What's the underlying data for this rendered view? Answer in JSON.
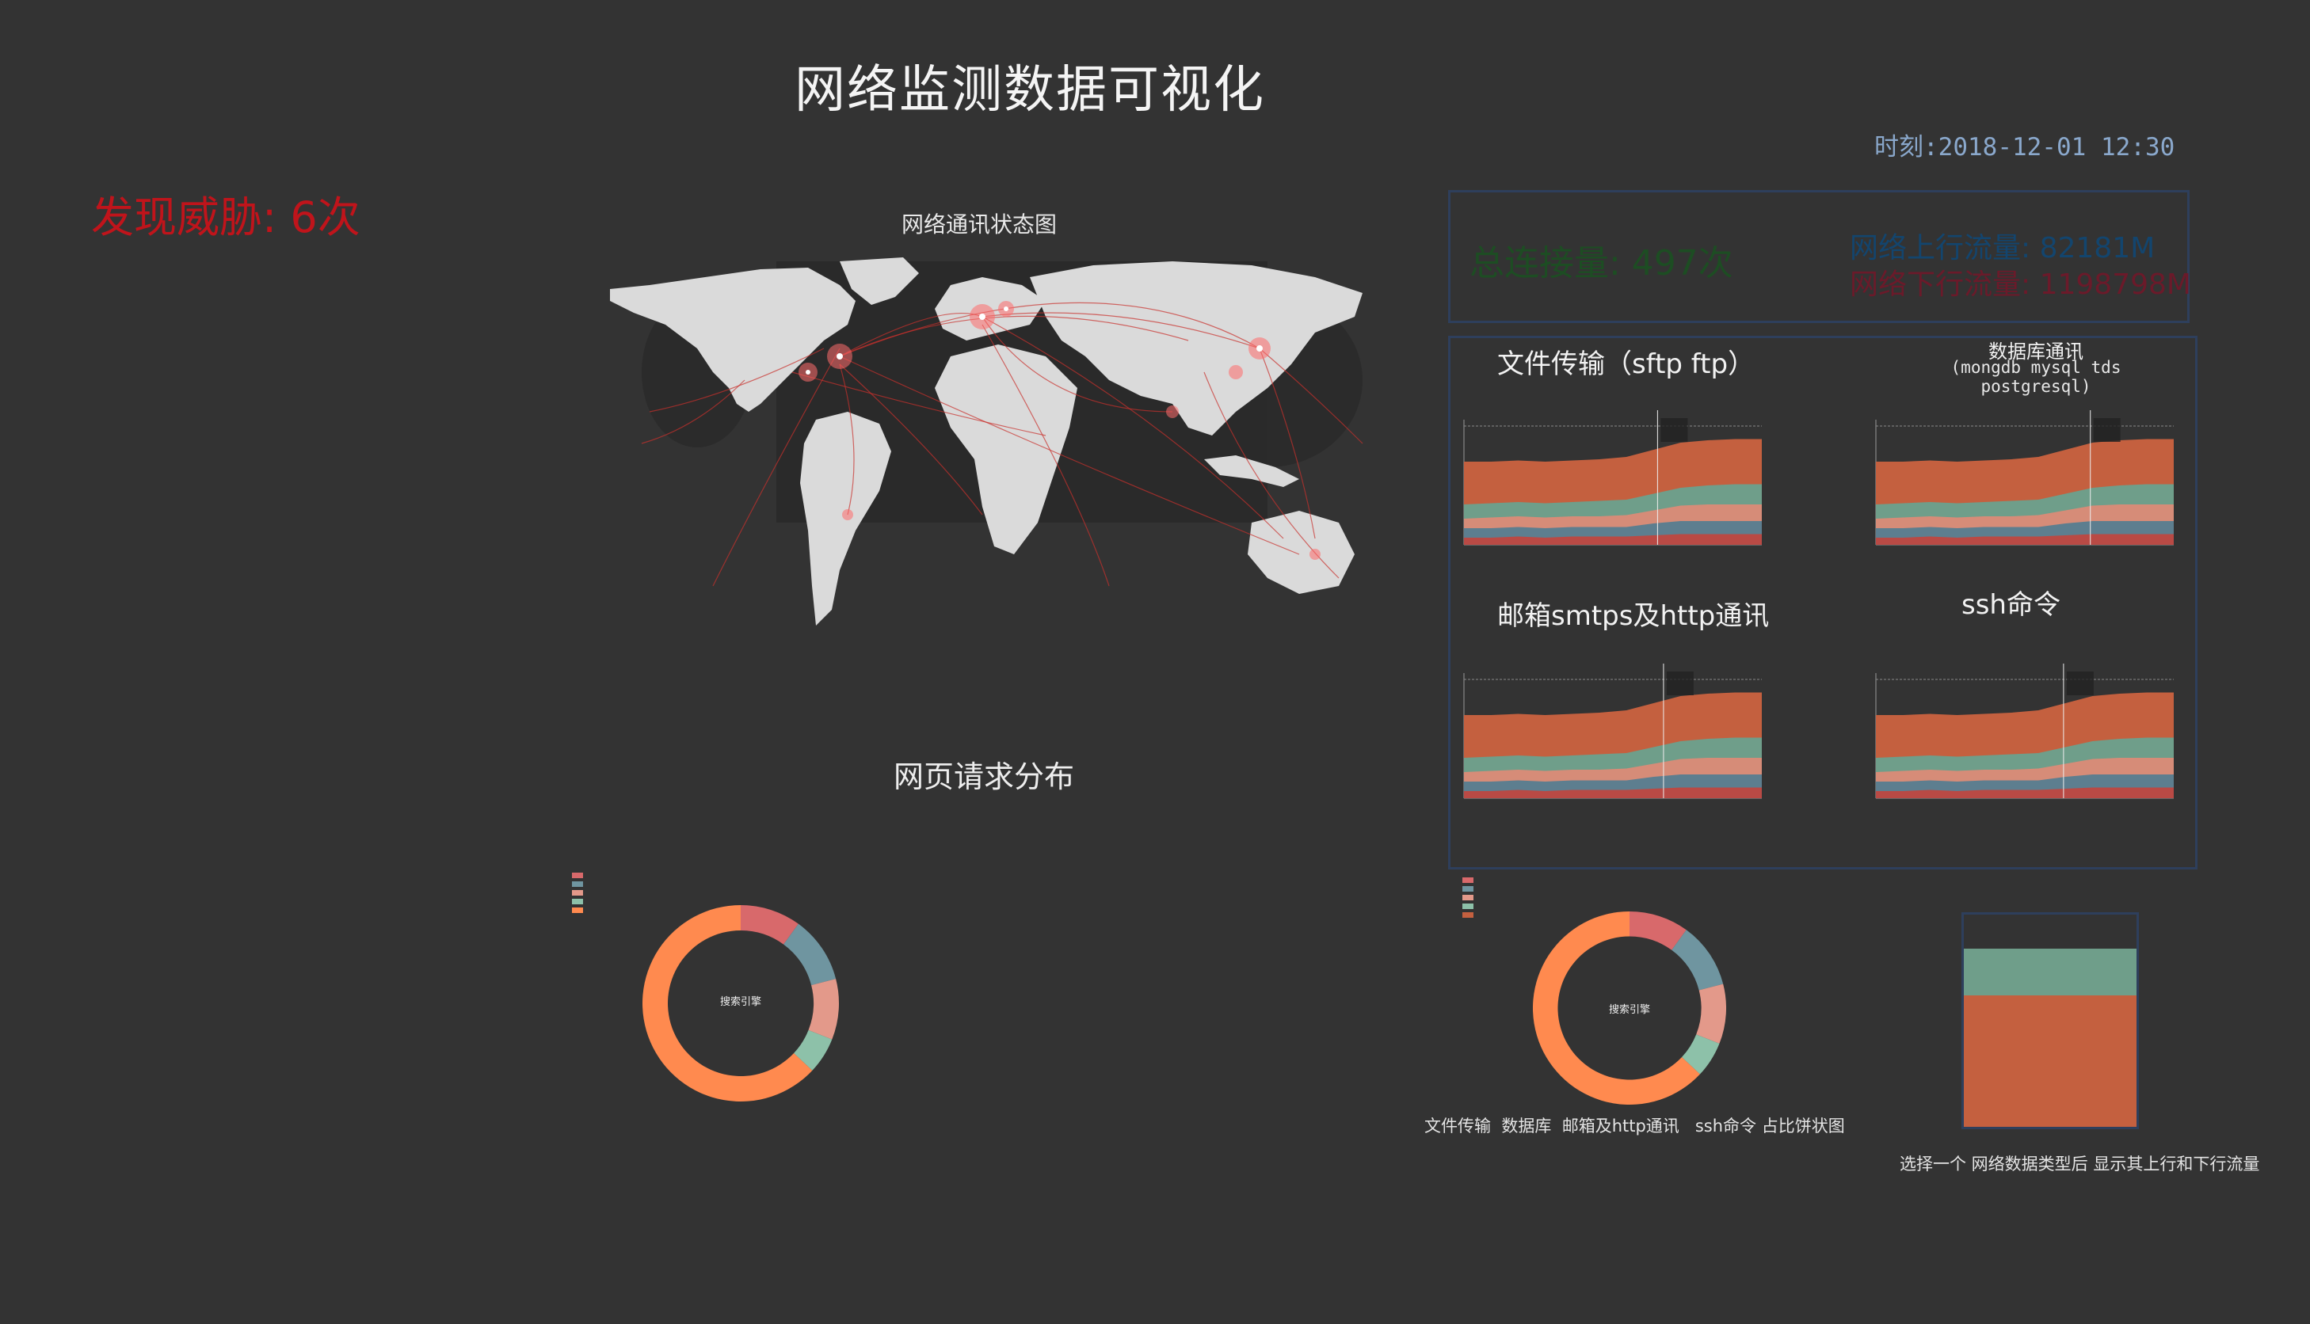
{
  "header": {
    "title": "网络监测数据可视化",
    "time": "时刻:2018-12-01 12:30",
    "threat": "发现威胁: 6次"
  },
  "map": {
    "title": "网络通讯状态图"
  },
  "stats": {
    "total_connections": "总连接量:  497次",
    "upstream": "网络上行流量: 82181M",
    "downstream": "网络下行流量: 1198798M"
  },
  "charts": {
    "file_transfer": {
      "title": "文件传输（sftp  ftp）"
    },
    "database": {
      "title": "数据库通讯",
      "subtitle": "(mongdb mysql tds postgresql)"
    },
    "mail_http": {
      "title": "邮箱smtps及http通讯"
    },
    "ssh": {
      "title": "ssh命令"
    }
  },
  "web": {
    "title": "网页请求分布",
    "donut_center": "搜索引擎"
  },
  "pie2": {
    "donut_center": "搜索引擎",
    "caption": "文件传输  数据库  邮箱及http通讯   ssh命令 占比饼状图"
  },
  "flow": {
    "caption": "选择一个  网络数据类型后  显示其上行和下行流量",
    "upstream_share": 0.22,
    "downstream_share": 0.62
  },
  "colors": {
    "bg": "#333333",
    "s1": "#c4603f",
    "s2": "#6f9e8a",
    "s3": "#d68c78",
    "s4": "#5d7e8f",
    "s5": "#b94a45",
    "donut": [
      "#d8696b",
      "#6f95a0",
      "#e3998a",
      "#8dc1a9",
      "#ff8a4f"
    ]
  }
}
